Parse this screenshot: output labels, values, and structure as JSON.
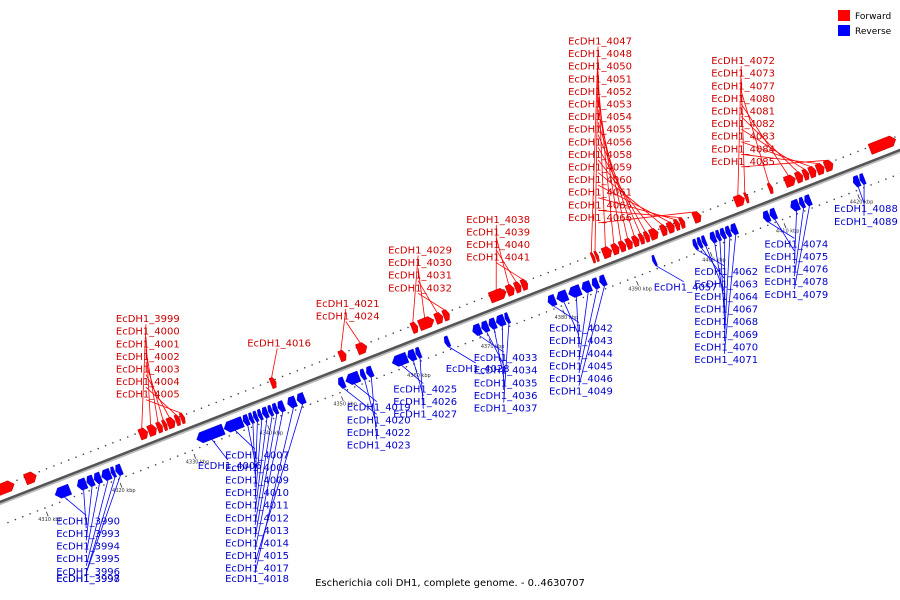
{
  "title": "Escherichia coli DH1, complete genome. - 0..4630707",
  "legend": {
    "forward": {
      "label": "Forward",
      "color": "#ff0000"
    },
    "reverse": {
      "label": "Reverse",
      "color": "#0000ff"
    }
  },
  "axis": {
    "unit": "kbp",
    "start_kbp": 4305,
    "end_kbp": 4427,
    "ticks": [
      {
        "label": "4310 kbp",
        "kbp": 4310
      },
      {
        "label": "4320 kbp",
        "kbp": 4320
      },
      {
        "label": "4330 kbp",
        "kbp": 4330
      },
      {
        "label": "4340 kbp",
        "kbp": 4340
      },
      {
        "label": "4350 kbp",
        "kbp": 4350
      },
      {
        "label": "4360 kbp",
        "kbp": 4360
      },
      {
        "label": "4370 kbp",
        "kbp": 4370
      },
      {
        "label": "4380 kbp",
        "kbp": 4380
      },
      {
        "label": "4390 kbp",
        "kbp": 4390
      },
      {
        "label": "4400 kbp",
        "kbp": 4400
      },
      {
        "label": "4410 kbp",
        "kbp": 4410
      },
      {
        "label": "4420 kbp",
        "kbp": 4420
      }
    ]
  },
  "genes": [
    {
      "name": "",
      "strand": "forward",
      "start_kbp": 4305.0,
      "end_kbp": 4307.5
    },
    {
      "name": "",
      "strand": "forward",
      "start_kbp": 4309.0,
      "end_kbp": 4310.5
    },
    {
      "name": "EcDH1_3990",
      "strand": "reverse",
      "start_kbp": 4311.8,
      "end_kbp": 4313.8
    },
    {
      "name": "EcDH1_3993",
      "strand": "reverse",
      "start_kbp": 4314.8,
      "end_kbp": 4316.0
    },
    {
      "name": "EcDH1_3994",
      "strand": "reverse",
      "start_kbp": 4316.1,
      "end_kbp": 4317.0
    },
    {
      "name": "EcDH1_3995",
      "strand": "reverse",
      "start_kbp": 4317.1,
      "end_kbp": 4318.0
    },
    {
      "name": "EcDH1_3996",
      "strand": "reverse",
      "start_kbp": 4318.1,
      "end_kbp": 4319.3
    },
    {
      "name": "EcDH1_3997",
      "strand": "reverse",
      "start_kbp": 4319.4,
      "end_kbp": 4319.9
    },
    {
      "name": "EcDH1_3998",
      "strand": "reverse",
      "start_kbp": 4320.0,
      "end_kbp": 4320.8
    },
    {
      "name": "EcDH1_3999",
      "strand": "forward",
      "start_kbp": 4324.5,
      "end_kbp": 4325.6
    },
    {
      "name": "EcDH1_4000",
      "strand": "forward",
      "start_kbp": 4325.7,
      "end_kbp": 4326.8
    },
    {
      "name": "EcDH1_4001",
      "strand": "forward",
      "start_kbp": 4326.9,
      "end_kbp": 4327.6
    },
    {
      "name": "EcDH1_4002",
      "strand": "forward",
      "start_kbp": 4327.7,
      "end_kbp": 4328.2
    },
    {
      "name": "EcDH1_4003",
      "strand": "forward",
      "start_kbp": 4328.3,
      "end_kbp": 4329.3
    },
    {
      "name": "EcDH1_4004",
      "strand": "forward",
      "start_kbp": 4329.4,
      "end_kbp": 4330.0
    },
    {
      "name": "EcDH1_4005",
      "strand": "forward",
      "start_kbp": 4330.1,
      "end_kbp": 4330.6
    },
    {
      "name": "EcDH1_4006",
      "strand": "reverse",
      "start_kbp": 4331.0,
      "end_kbp": 4334.6
    },
    {
      "name": "EcDH1_4007",
      "strand": "reverse",
      "start_kbp": 4334.7,
      "end_kbp": 4337.2
    },
    {
      "name": "EcDH1_4008",
      "strand": "reverse",
      "start_kbp": 4337.3,
      "end_kbp": 4338.0
    },
    {
      "name": "EcDH1_4009",
      "strand": "reverse",
      "start_kbp": 4338.1,
      "end_kbp": 4338.6
    },
    {
      "name": "EcDH1_4010",
      "strand": "reverse",
      "start_kbp": 4338.7,
      "end_kbp": 4339.2
    },
    {
      "name": "EcDH1_4011",
      "strand": "reverse",
      "start_kbp": 4339.3,
      "end_kbp": 4339.8
    },
    {
      "name": "EcDH1_4012",
      "strand": "reverse",
      "start_kbp": 4339.9,
      "end_kbp": 4340.6
    },
    {
      "name": "EcDH1_4013",
      "strand": "reverse",
      "start_kbp": 4340.7,
      "end_kbp": 4341.2
    },
    {
      "name": "EcDH1_4014",
      "strand": "reverse",
      "start_kbp": 4341.3,
      "end_kbp": 4341.9
    },
    {
      "name": "EcDH1_4015",
      "strand": "reverse",
      "start_kbp": 4342.0,
      "end_kbp": 4342.8
    },
    {
      "name": "EcDH1_4016",
      "strand": "forward",
      "start_kbp": 4342.3,
      "end_kbp": 4343.0
    },
    {
      "name": "EcDH1_4017",
      "strand": "reverse",
      "start_kbp": 4344.6,
      "end_kbp": 4345.6
    },
    {
      "name": "EcDH1_4018",
      "strand": "reverse",
      "start_kbp": 4343.3,
      "end_kbp": 4344.4
    },
    {
      "name": "EcDH1_4019",
      "strand": "reverse",
      "start_kbp": 4351.2,
      "end_kbp": 4353.0
    },
    {
      "name": "EcDH1_4020",
      "strand": "reverse",
      "start_kbp": 4350.2,
      "end_kbp": 4351.0
    },
    {
      "name": "EcDH1_4021",
      "strand": "forward",
      "start_kbp": 4351.6,
      "end_kbp": 4352.5
    },
    {
      "name": "EcDH1_4022",
      "strand": "reverse",
      "start_kbp": 4353.2,
      "end_kbp": 4353.8
    },
    {
      "name": "EcDH1_4023",
      "strand": "reverse",
      "start_kbp": 4354.0,
      "end_kbp": 4354.8
    },
    {
      "name": "EcDH1_4024",
      "strand": "forward",
      "start_kbp": 4354.0,
      "end_kbp": 4355.3
    },
    {
      "name": "EcDH1_4025",
      "strand": "reverse",
      "start_kbp": 4357.5,
      "end_kbp": 4359.5
    },
    {
      "name": "EcDH1_4026",
      "strand": "reverse",
      "start_kbp": 4359.6,
      "end_kbp": 4360.6
    },
    {
      "name": "EcDH1_4027",
      "strand": "reverse",
      "start_kbp": 4360.7,
      "end_kbp": 4361.3
    },
    {
      "name": "EcDH1_4028",
      "strand": "reverse",
      "start_kbp": 4364.6,
      "end_kbp": 4365.2
    },
    {
      "name": "EcDH1_4029",
      "strand": "forward",
      "start_kbp": 4361.4,
      "end_kbp": 4362.2
    },
    {
      "name": "EcDH1_4030",
      "strand": "forward",
      "start_kbp": 4362.4,
      "end_kbp": 4364.4
    },
    {
      "name": "EcDH1_4031",
      "strand": "forward",
      "start_kbp": 4364.6,
      "end_kbp": 4365.6
    },
    {
      "name": "EcDH1_4032",
      "strand": "forward",
      "start_kbp": 4365.7,
      "end_kbp": 4366.5
    },
    {
      "name": "EcDH1_4033",
      "strand": "reverse",
      "start_kbp": 4368.4,
      "end_kbp": 4369.5
    },
    {
      "name": "EcDH1_4034",
      "strand": "reverse",
      "start_kbp": 4369.6,
      "end_kbp": 4370.5
    },
    {
      "name": "EcDH1_4035",
      "strand": "reverse",
      "start_kbp": 4370.6,
      "end_kbp": 4371.5
    },
    {
      "name": "EcDH1_4036",
      "strand": "reverse",
      "start_kbp": 4371.6,
      "end_kbp": 4372.7
    },
    {
      "name": "EcDH1_4037",
      "strand": "reverse",
      "start_kbp": 4372.8,
      "end_kbp": 4373.3
    },
    {
      "name": "EcDH1_4038",
      "strand": "forward",
      "start_kbp": 4372.0,
      "end_kbp": 4374.2
    },
    {
      "name": "EcDH1_4039",
      "strand": "forward",
      "start_kbp": 4374.3,
      "end_kbp": 4375.3
    },
    {
      "name": "EcDH1_4040",
      "strand": "forward",
      "start_kbp": 4375.4,
      "end_kbp": 4376.2
    },
    {
      "name": "EcDH1_4041",
      "strand": "forward",
      "start_kbp": 4376.3,
      "end_kbp": 4377.1
    },
    {
      "name": "EcDH1_4042",
      "strand": "reverse",
      "start_kbp": 4378.6,
      "end_kbp": 4379.6
    },
    {
      "name": "EcDH1_4043",
      "strand": "reverse",
      "start_kbp": 4379.8,
      "end_kbp": 4381.2
    },
    {
      "name": "EcDH1_4044",
      "strand": "reverse",
      "start_kbp": 4381.4,
      "end_kbp": 4383.0
    },
    {
      "name": "EcDH1_4045",
      "strand": "reverse",
      "start_kbp": 4383.2,
      "end_kbp": 4384.4
    },
    {
      "name": "EcDH1_4046",
      "strand": "reverse",
      "start_kbp": 4384.6,
      "end_kbp": 4385.4
    },
    {
      "name": "EcDH1_4047",
      "strand": "forward",
      "start_kbp": 4385.8,
      "end_kbp": 4386.2
    },
    {
      "name": "EcDH1_4048",
      "strand": "forward",
      "start_kbp": 4386.3,
      "end_kbp": 4386.7
    },
    {
      "name": "EcDH1_4049",
      "strand": "reverse",
      "start_kbp": 4385.6,
      "end_kbp": 4386.4
    },
    {
      "name": "EcDH1_4050",
      "strand": "forward",
      "start_kbp": 4387.3,
      "end_kbp": 4388.5
    },
    {
      "name": "EcDH1_4051",
      "strand": "forward",
      "start_kbp": 4388.6,
      "end_kbp": 4389.5
    },
    {
      "name": "EcDH1_4052",
      "strand": "forward",
      "start_kbp": 4389.6,
      "end_kbp": 4390.4
    },
    {
      "name": "EcDH1_4053",
      "strand": "forward",
      "start_kbp": 4390.5,
      "end_kbp": 4391.3
    },
    {
      "name": "EcDH1_4054",
      "strand": "forward",
      "start_kbp": 4391.4,
      "end_kbp": 4392.2
    },
    {
      "name": "EcDH1_4055",
      "strand": "forward",
      "start_kbp": 4392.3,
      "end_kbp": 4392.9
    },
    {
      "name": "EcDH1_4056",
      "strand": "forward",
      "start_kbp": 4393.0,
      "end_kbp": 4393.6
    },
    {
      "name": "EcDH1_4057",
      "strand": "reverse",
      "start_kbp": 4392.8,
      "end_kbp": 4393.2
    },
    {
      "name": "EcDH1_4058",
      "strand": "forward",
      "start_kbp": 4393.7,
      "end_kbp": 4394.8
    },
    {
      "name": "EcDH1_4059",
      "strand": "forward",
      "start_kbp": 4395.2,
      "end_kbp": 4396.0
    },
    {
      "name": "EcDH1_4060",
      "strand": "forward",
      "start_kbp": 4396.1,
      "end_kbp": 4397.0
    },
    {
      "name": "EcDH1_4061",
      "strand": "forward",
      "start_kbp": 4397.1,
      "end_kbp": 4397.7
    },
    {
      "name": "EcDH1_4062",
      "strand": "reverse",
      "start_kbp": 4398.3,
      "end_kbp": 4398.8
    },
    {
      "name": "EcDH1_4063",
      "strand": "reverse",
      "start_kbp": 4398.9,
      "end_kbp": 4399.4
    },
    {
      "name": "EcDH1_4064",
      "strand": "reverse",
      "start_kbp": 4399.5,
      "end_kbp": 4400.0
    },
    {
      "name": "EcDH1_4065",
      "strand": "forward",
      "start_kbp": 4397.8,
      "end_kbp": 4398.4
    },
    {
      "name": "EcDH1_4066",
      "strand": "forward",
      "start_kbp": 4399.6,
      "end_kbp": 4400.6
    },
    {
      "name": "EcDH1_4067",
      "strand": "reverse",
      "start_kbp": 4400.6,
      "end_kbp": 4401.3
    },
    {
      "name": "EcDH1_4068",
      "strand": "reverse",
      "start_kbp": 4401.4,
      "end_kbp": 4401.9
    },
    {
      "name": "EcDH1_4069",
      "strand": "reverse",
      "start_kbp": 4402.0,
      "end_kbp": 4402.6
    },
    {
      "name": "EcDH1_4070",
      "strand": "reverse",
      "start_kbp": 4402.7,
      "end_kbp": 4403.3
    },
    {
      "name": "EcDH1_4071",
      "strand": "reverse",
      "start_kbp": 4403.4,
      "end_kbp": 4404.2
    },
    {
      "name": "EcDH1_4072",
      "strand": "forward",
      "start_kbp": 4405.2,
      "end_kbp": 4406.5
    },
    {
      "name": "EcDH1_4073",
      "strand": "forward",
      "start_kbp": 4406.6,
      "end_kbp": 4407.0
    },
    {
      "name": "EcDH1_4074",
      "strand": "reverse",
      "start_kbp": 4407.8,
      "end_kbp": 4408.6
    },
    {
      "name": "EcDH1_4075",
      "strand": "reverse",
      "start_kbp": 4408.7,
      "end_kbp": 4409.5
    },
    {
      "name": "EcDH1_4076",
      "strand": "reverse",
      "start_kbp": 4411.5,
      "end_kbp": 4412.6
    },
    {
      "name": "EcDH1_4077",
      "strand": "forward",
      "start_kbp": 4409.8,
      "end_kbp": 4410.3
    },
    {
      "name": "EcDH1_4078",
      "strand": "reverse",
      "start_kbp": 4412.7,
      "end_kbp": 4413.3
    },
    {
      "name": "EcDH1_4079",
      "strand": "reverse",
      "start_kbp": 4413.4,
      "end_kbp": 4414.2
    },
    {
      "name": "EcDH1_4080",
      "strand": "forward",
      "start_kbp": 4412.0,
      "end_kbp": 4413.4
    },
    {
      "name": "EcDH1_4081",
      "strand": "forward",
      "start_kbp": 4413.5,
      "end_kbp": 4414.4
    },
    {
      "name": "EcDH1_4082",
      "strand": "forward",
      "start_kbp": 4414.5,
      "end_kbp": 4415.2
    },
    {
      "name": "EcDH1_4083",
      "strand": "forward",
      "start_kbp": 4415.3,
      "end_kbp": 4416.2
    },
    {
      "name": "EcDH1_4084",
      "strand": "forward",
      "start_kbp": 4416.3,
      "end_kbp": 4417.3
    },
    {
      "name": "EcDH1_4085",
      "strand": "forward",
      "start_kbp": 4417.4,
      "end_kbp": 4418.5
    },
    {
      "name": "EcDH1_4088",
      "strand": "reverse",
      "start_kbp": 4420.0,
      "end_kbp": 4420.8
    },
    {
      "name": "EcDH1_4089",
      "strand": "reverse",
      "start_kbp": 4420.9,
      "end_kbp": 4421.5
    },
    {
      "name": "",
      "strand": "forward",
      "start_kbp": 4423.5,
      "end_kbp": 4427.0
    }
  ]
}
